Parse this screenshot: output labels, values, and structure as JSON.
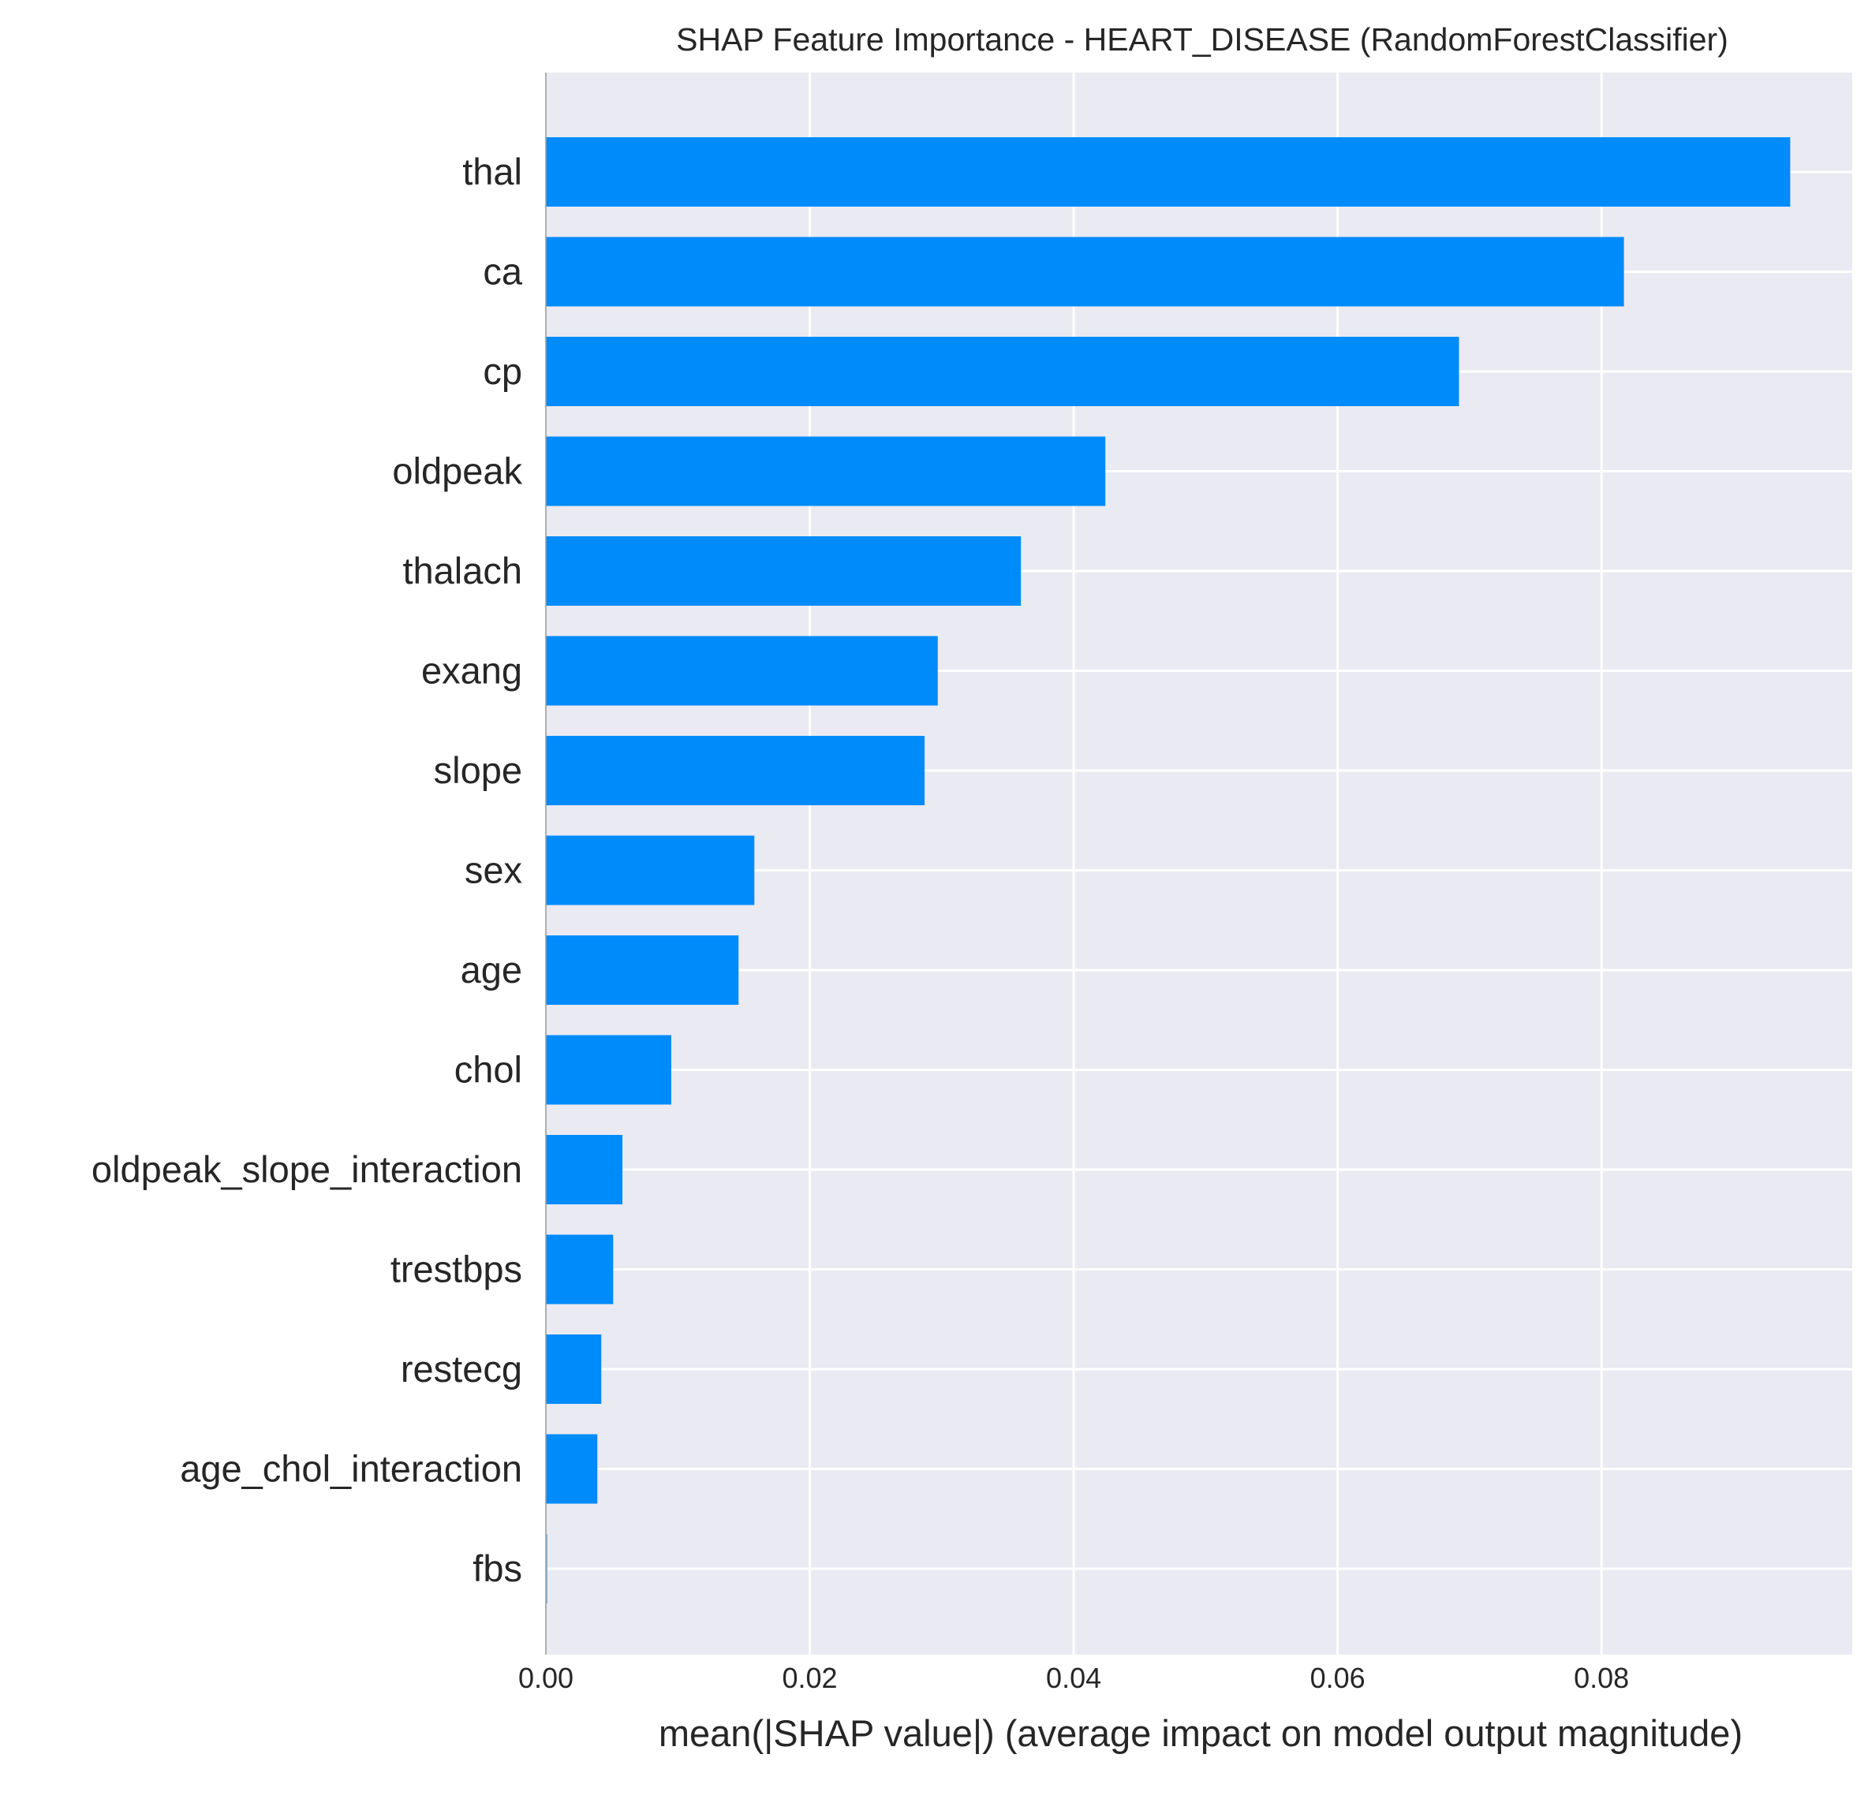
{
  "chart_data": {
    "type": "bar",
    "orientation": "horizontal",
    "title": "SHAP Feature Importance - HEART_DISEASE (RandomForestClassifier)",
    "xlabel": "mean(|SHAP value|) (average impact on model output magnitude)",
    "ylabel": "",
    "xlim": [
      0.0,
      0.099
    ],
    "xticks": [
      "0.00",
      "0.02",
      "0.04",
      "0.06",
      "0.08"
    ],
    "xtick_values": [
      0.0,
      0.02,
      0.04,
      0.06,
      0.08
    ],
    "grid": true,
    "categories": [
      "thal",
      "ca",
      "cp",
      "oldpeak",
      "thalach",
      "exang",
      "slope",
      "sex",
      "age",
      "chol",
      "oldpeak_slope_interaction",
      "trestbps",
      "restecg",
      "age_chol_interaction",
      "fbs"
    ],
    "values": [
      0.0943,
      0.0817,
      0.0692,
      0.0424,
      0.036,
      0.0297,
      0.0287,
      0.0158,
      0.0146,
      0.0095,
      0.0058,
      0.0051,
      0.0042,
      0.0039,
      0.0001
    ],
    "colors": {
      "bar": "#008bfb",
      "bar_tiny": "#7fbdea",
      "background": "#eaeaf2",
      "grid": "#ffffff",
      "text": "#262626"
    }
  }
}
